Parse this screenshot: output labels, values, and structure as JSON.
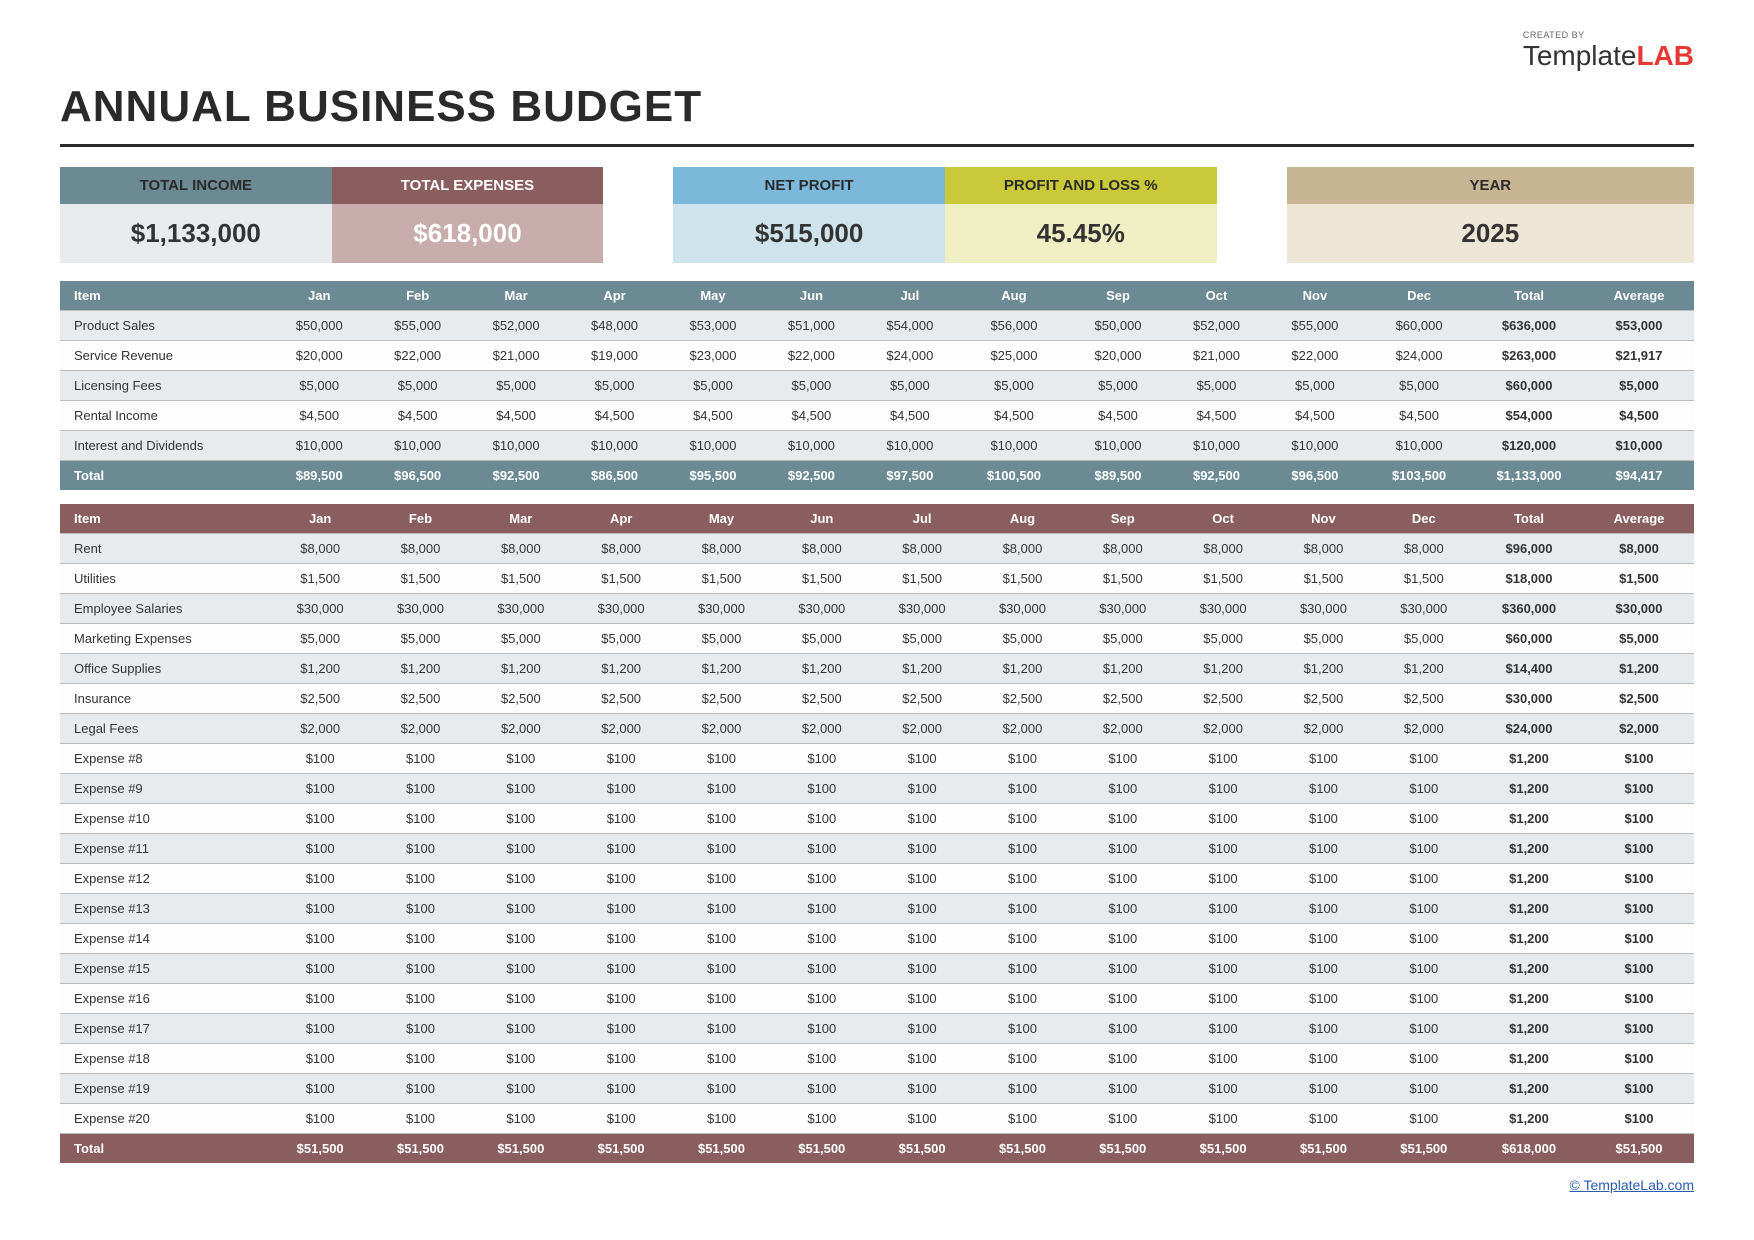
{
  "brand": {
    "created": "CREATED BY",
    "name": "Template",
    "suffix": "LAB"
  },
  "title": "ANNUAL BUSINESS BUDGET",
  "summary": {
    "income": {
      "label": "TOTAL INCOME",
      "value": "$1,133,000"
    },
    "expenses": {
      "label": "TOTAL EXPENSES",
      "value": "$618,000"
    },
    "net": {
      "label": "NET PROFIT",
      "value": "$515,000"
    },
    "pl": {
      "label": "PROFIT AND LOSS %",
      "value": "45.45%"
    },
    "year": {
      "label": "YEAR",
      "value": "2025"
    }
  },
  "columns": [
    "Item",
    "Jan",
    "Feb",
    "Mar",
    "Apr",
    "May",
    "Jun",
    "Jul",
    "Aug",
    "Sep",
    "Oct",
    "Nov",
    "Dec",
    "Total",
    "Average"
  ],
  "income": {
    "rows": [
      {
        "item": "Product Sales",
        "vals": [
          "$50,000",
          "$55,000",
          "$52,000",
          "$48,000",
          "$53,000",
          "$51,000",
          "$54,000",
          "$56,000",
          "$50,000",
          "$52,000",
          "$55,000",
          "$60,000"
        ],
        "total": "$636,000",
        "avg": "$53,000"
      },
      {
        "item": "Service Revenue",
        "vals": [
          "$20,000",
          "$22,000",
          "$21,000",
          "$19,000",
          "$23,000",
          "$22,000",
          "$24,000",
          "$25,000",
          "$20,000",
          "$21,000",
          "$22,000",
          "$24,000"
        ],
        "total": "$263,000",
        "avg": "$21,917"
      },
      {
        "item": "Licensing Fees",
        "vals": [
          "$5,000",
          "$5,000",
          "$5,000",
          "$5,000",
          "$5,000",
          "$5,000",
          "$5,000",
          "$5,000",
          "$5,000",
          "$5,000",
          "$5,000",
          "$5,000"
        ],
        "total": "$60,000",
        "avg": "$5,000"
      },
      {
        "item": "Rental Income",
        "vals": [
          "$4,500",
          "$4,500",
          "$4,500",
          "$4,500",
          "$4,500",
          "$4,500",
          "$4,500",
          "$4,500",
          "$4,500",
          "$4,500",
          "$4,500",
          "$4,500"
        ],
        "total": "$54,000",
        "avg": "$4,500"
      },
      {
        "item": "Interest and Dividends",
        "vals": [
          "$10,000",
          "$10,000",
          "$10,000",
          "$10,000",
          "$10,000",
          "$10,000",
          "$10,000",
          "$10,000",
          "$10,000",
          "$10,000",
          "$10,000",
          "$10,000"
        ],
        "total": "$120,000",
        "avg": "$10,000"
      }
    ],
    "total": {
      "item": "Total",
      "vals": [
        "$89,500",
        "$96,500",
        "$92,500",
        "$86,500",
        "$95,500",
        "$92,500",
        "$97,500",
        "$100,500",
        "$89,500",
        "$92,500",
        "$96,500",
        "$103,500"
      ],
      "total": "$1,133,000",
      "avg": "$94,417"
    }
  },
  "expenses": {
    "rows": [
      {
        "item": "Rent",
        "vals": [
          "$8,000",
          "$8,000",
          "$8,000",
          "$8,000",
          "$8,000",
          "$8,000",
          "$8,000",
          "$8,000",
          "$8,000",
          "$8,000",
          "$8,000",
          "$8,000"
        ],
        "total": "$96,000",
        "avg": "$8,000"
      },
      {
        "item": "Utilities",
        "vals": [
          "$1,500",
          "$1,500",
          "$1,500",
          "$1,500",
          "$1,500",
          "$1,500",
          "$1,500",
          "$1,500",
          "$1,500",
          "$1,500",
          "$1,500",
          "$1,500"
        ],
        "total": "$18,000",
        "avg": "$1,500"
      },
      {
        "item": "Employee Salaries",
        "vals": [
          "$30,000",
          "$30,000",
          "$30,000",
          "$30,000",
          "$30,000",
          "$30,000",
          "$30,000",
          "$30,000",
          "$30,000",
          "$30,000",
          "$30,000",
          "$30,000"
        ],
        "total": "$360,000",
        "avg": "$30,000"
      },
      {
        "item": "Marketing Expenses",
        "vals": [
          "$5,000",
          "$5,000",
          "$5,000",
          "$5,000",
          "$5,000",
          "$5,000",
          "$5,000",
          "$5,000",
          "$5,000",
          "$5,000",
          "$5,000",
          "$5,000"
        ],
        "total": "$60,000",
        "avg": "$5,000"
      },
      {
        "item": "Office Supplies",
        "vals": [
          "$1,200",
          "$1,200",
          "$1,200",
          "$1,200",
          "$1,200",
          "$1,200",
          "$1,200",
          "$1,200",
          "$1,200",
          "$1,200",
          "$1,200",
          "$1,200"
        ],
        "total": "$14,400",
        "avg": "$1,200"
      },
      {
        "item": "Insurance",
        "vals": [
          "$2,500",
          "$2,500",
          "$2,500",
          "$2,500",
          "$2,500",
          "$2,500",
          "$2,500",
          "$2,500",
          "$2,500",
          "$2,500",
          "$2,500",
          "$2,500"
        ],
        "total": "$30,000",
        "avg": "$2,500"
      },
      {
        "item": "Legal Fees",
        "vals": [
          "$2,000",
          "$2,000",
          "$2,000",
          "$2,000",
          "$2,000",
          "$2,000",
          "$2,000",
          "$2,000",
          "$2,000",
          "$2,000",
          "$2,000",
          "$2,000"
        ],
        "total": "$24,000",
        "avg": "$2,000"
      },
      {
        "item": "Expense #8",
        "vals": [
          "$100",
          "$100",
          "$100",
          "$100",
          "$100",
          "$100",
          "$100",
          "$100",
          "$100",
          "$100",
          "$100",
          "$100"
        ],
        "total": "$1,200",
        "avg": "$100"
      },
      {
        "item": "Expense #9",
        "vals": [
          "$100",
          "$100",
          "$100",
          "$100",
          "$100",
          "$100",
          "$100",
          "$100",
          "$100",
          "$100",
          "$100",
          "$100"
        ],
        "total": "$1,200",
        "avg": "$100"
      },
      {
        "item": "Expense #10",
        "vals": [
          "$100",
          "$100",
          "$100",
          "$100",
          "$100",
          "$100",
          "$100",
          "$100",
          "$100",
          "$100",
          "$100",
          "$100"
        ],
        "total": "$1,200",
        "avg": "$100"
      },
      {
        "item": "Expense #11",
        "vals": [
          "$100",
          "$100",
          "$100",
          "$100",
          "$100",
          "$100",
          "$100",
          "$100",
          "$100",
          "$100",
          "$100",
          "$100"
        ],
        "total": "$1,200",
        "avg": "$100"
      },
      {
        "item": "Expense #12",
        "vals": [
          "$100",
          "$100",
          "$100",
          "$100",
          "$100",
          "$100",
          "$100",
          "$100",
          "$100",
          "$100",
          "$100",
          "$100"
        ],
        "total": "$1,200",
        "avg": "$100"
      },
      {
        "item": "Expense #13",
        "vals": [
          "$100",
          "$100",
          "$100",
          "$100",
          "$100",
          "$100",
          "$100",
          "$100",
          "$100",
          "$100",
          "$100",
          "$100"
        ],
        "total": "$1,200",
        "avg": "$100"
      },
      {
        "item": "Expense #14",
        "vals": [
          "$100",
          "$100",
          "$100",
          "$100",
          "$100",
          "$100",
          "$100",
          "$100",
          "$100",
          "$100",
          "$100",
          "$100"
        ],
        "total": "$1,200",
        "avg": "$100"
      },
      {
        "item": "Expense #15",
        "vals": [
          "$100",
          "$100",
          "$100",
          "$100",
          "$100",
          "$100",
          "$100",
          "$100",
          "$100",
          "$100",
          "$100",
          "$100"
        ],
        "total": "$1,200",
        "avg": "$100"
      },
      {
        "item": "Expense #16",
        "vals": [
          "$100",
          "$100",
          "$100",
          "$100",
          "$100",
          "$100",
          "$100",
          "$100",
          "$100",
          "$100",
          "$100",
          "$100"
        ],
        "total": "$1,200",
        "avg": "$100"
      },
      {
        "item": "Expense #17",
        "vals": [
          "$100",
          "$100",
          "$100",
          "$100",
          "$100",
          "$100",
          "$100",
          "$100",
          "$100",
          "$100",
          "$100",
          "$100"
        ],
        "total": "$1,200",
        "avg": "$100"
      },
      {
        "item": "Expense #18",
        "vals": [
          "$100",
          "$100",
          "$100",
          "$100",
          "$100",
          "$100",
          "$100",
          "$100",
          "$100",
          "$100",
          "$100",
          "$100"
        ],
        "total": "$1,200",
        "avg": "$100"
      },
      {
        "item": "Expense #19",
        "vals": [
          "$100",
          "$100",
          "$100",
          "$100",
          "$100",
          "$100",
          "$100",
          "$100",
          "$100",
          "$100",
          "$100",
          "$100"
        ],
        "total": "$1,200",
        "avg": "$100"
      },
      {
        "item": "Expense #20",
        "vals": [
          "$100",
          "$100",
          "$100",
          "$100",
          "$100",
          "$100",
          "$100",
          "$100",
          "$100",
          "$100",
          "$100",
          "$100"
        ],
        "total": "$1,200",
        "avg": "$100"
      }
    ],
    "total": {
      "item": "Total",
      "vals": [
        "$51,500",
        "$51,500",
        "$51,500",
        "$51,500",
        "$51,500",
        "$51,500",
        "$51,500",
        "$51,500",
        "$51,500",
        "$51,500",
        "$51,500",
        "$51,500"
      ],
      "total": "$618,000",
      "avg": "$51,500"
    }
  },
  "footer": {
    "link": "© TemplateLab.com"
  },
  "styling": {
    "colors": {
      "income_header": "#6b8a93",
      "income_value_bg": "#e8ebee",
      "expense_header": "#8a5e5e",
      "expense_value_bg": "#c9adad",
      "net_header": "#7bb8d9",
      "net_value_bg": "#cfe3ed",
      "pl_header": "#c9c93a",
      "pl_value_bg": "#f0efc3",
      "year_header": "#c7b594",
      "year_value_bg": "#ede5d5",
      "row_odd": "#e8ebee",
      "row_even": "#fdfdfd",
      "border": "#bbbbbb",
      "title_color": "#2a2a2a",
      "link_color": "#2a5db0"
    },
    "fonts": {
      "title_size": 44,
      "summary_label": 15,
      "summary_value": 26,
      "table": 13
    }
  }
}
